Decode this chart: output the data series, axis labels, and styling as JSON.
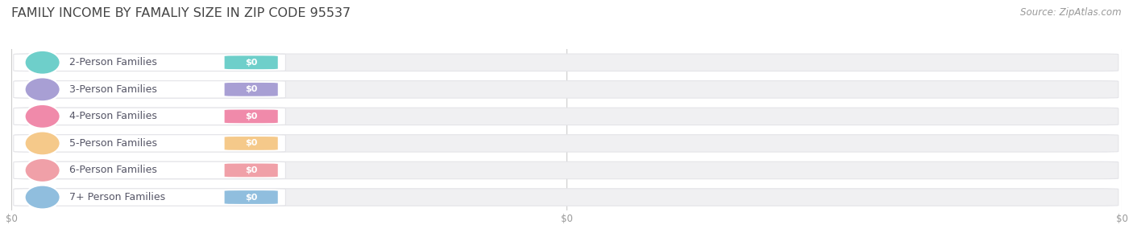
{
  "title": "FAMILY INCOME BY FAMALIY SIZE IN ZIP CODE 95537",
  "source_text": "Source: ZipAtlas.com",
  "categories": [
    "2-Person Families",
    "3-Person Families",
    "4-Person Families",
    "5-Person Families",
    "6-Person Families",
    "7+ Person Families"
  ],
  "values": [
    0,
    0,
    0,
    0,
    0,
    0
  ],
  "bar_colors": [
    "#6ecfca",
    "#a89fd4",
    "#f08aaa",
    "#f5c98a",
    "#f0a0a8",
    "#90bede"
  ],
  "value_label": "$0",
  "x_tick_labels": [
    "$0",
    "$0",
    "$0"
  ],
  "background_color": "#ffffff",
  "bar_bg_color": "#f0f0f2",
  "bar_bg_edge_color": "#e4e4e8",
  "white_pill_color": "#ffffff",
  "xlim": [
    0,
    1
  ],
  "bar_height": 0.68,
  "title_fontsize": 11.5,
  "label_fontsize": 9.0,
  "value_fontsize": 8.0,
  "source_fontsize": 8.5
}
